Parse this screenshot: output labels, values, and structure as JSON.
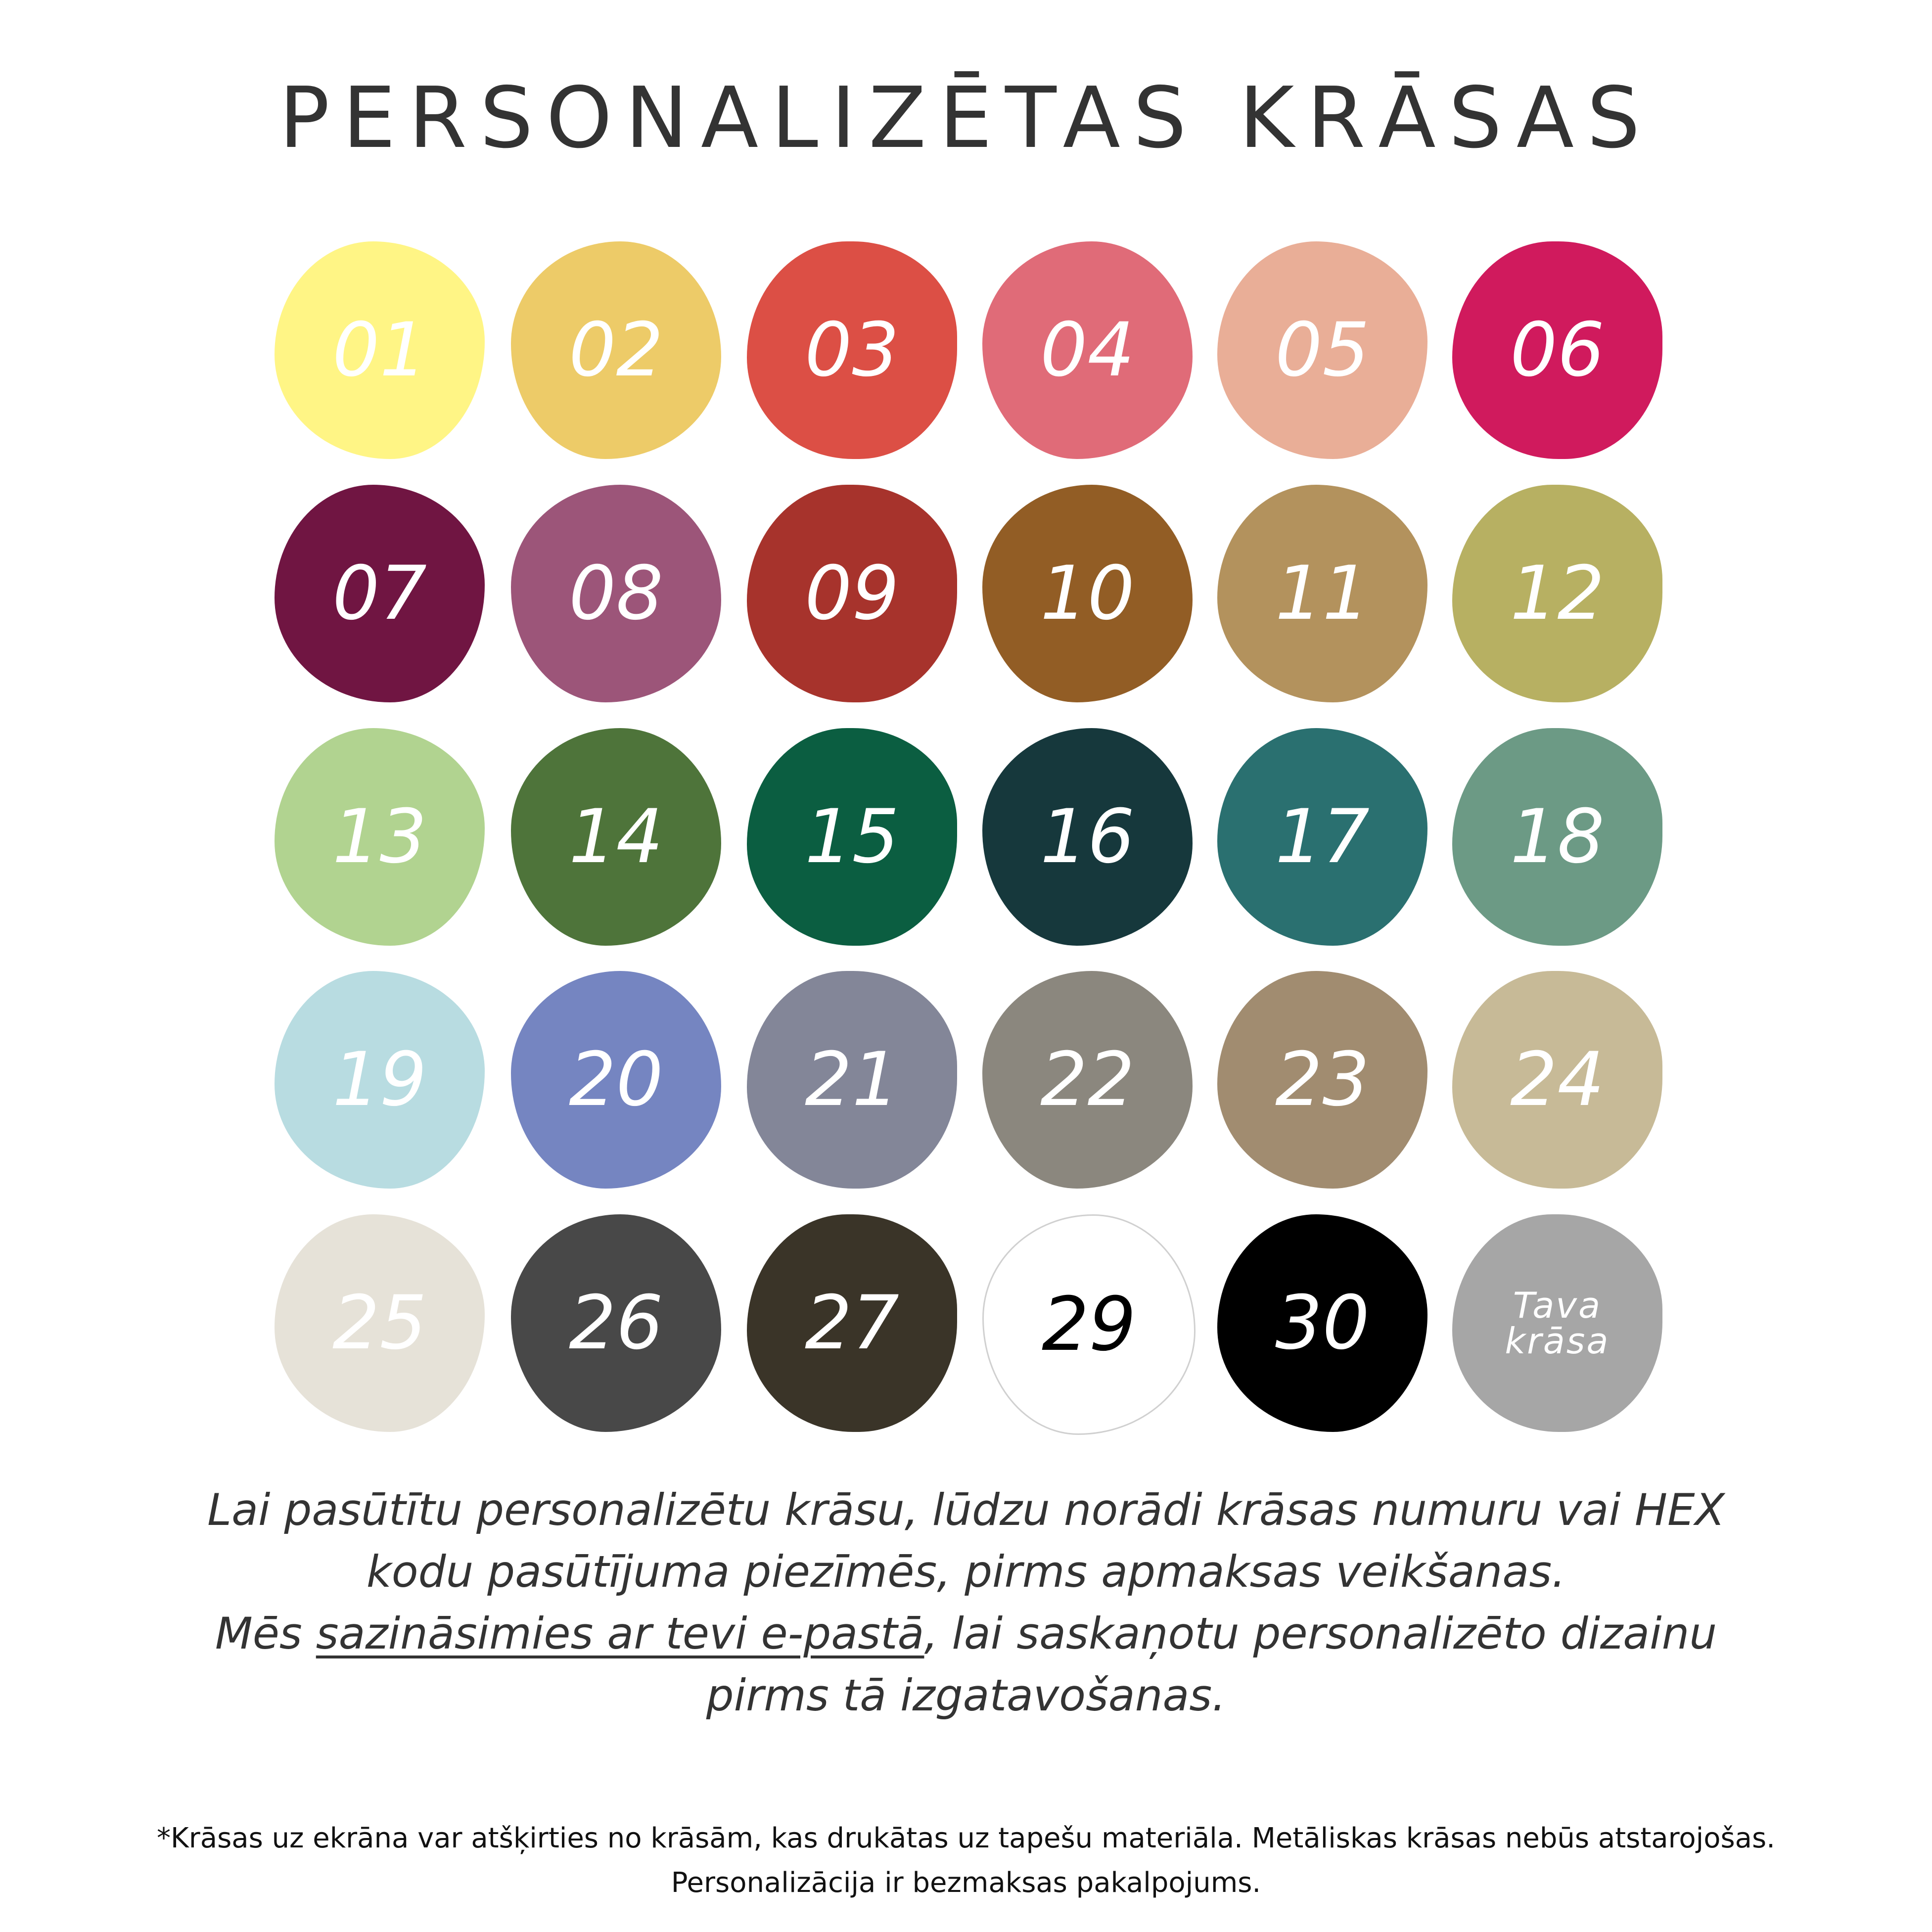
{
  "title": "PERSONALIZĒTAS KRĀSAS",
  "swatches": [
    {
      "label": "01",
      "color": "#fff585",
      "text": "#ffffff"
    },
    {
      "label": "02",
      "color": "#edcb68",
      "text": "#ffffff"
    },
    {
      "label": "03",
      "color": "#dc4f45",
      "text": "#ffffff"
    },
    {
      "label": "04",
      "color": "#e06b78",
      "text": "#ffffff"
    },
    {
      "label": "05",
      "color": "#e9ae97",
      "text": "#ffffff"
    },
    {
      "label": "06",
      "color": "#d01a5d",
      "text": "#ffffff"
    },
    {
      "label": "07",
      "color": "#701542",
      "text": "#ffffff"
    },
    {
      "label": "08",
      "color": "#9c5579",
      "text": "#ffffff"
    },
    {
      "label": "09",
      "color": "#a7332c",
      "text": "#ffffff"
    },
    {
      "label": "10",
      "color": "#925d25",
      "text": "#ffffff"
    },
    {
      "label": "11",
      "color": "#b3925d",
      "text": "#ffffff"
    },
    {
      "label": "12",
      "color": "#b7b062",
      "text": "#ffffff"
    },
    {
      "label": "13",
      "color": "#b1d390",
      "text": "#ffffff"
    },
    {
      "label": "14",
      "color": "#4e743a",
      "text": "#ffffff"
    },
    {
      "label": "15",
      "color": "#0b5e41",
      "text": "#ffffff"
    },
    {
      "label": "16",
      "color": "#16383c",
      "text": "#ffffff"
    },
    {
      "label": "17",
      "color": "#2a7070",
      "text": "#ffffff"
    },
    {
      "label": "18",
      "color": "#6c9a85",
      "text": "#ffffff"
    },
    {
      "label": "19",
      "color": "#b8dce1",
      "text": "#ffffff"
    },
    {
      "label": "20",
      "color": "#7585c1",
      "text": "#ffffff"
    },
    {
      "label": "21",
      "color": "#838698",
      "text": "#ffffff"
    },
    {
      "label": "22",
      "color": "#8b877e",
      "text": "#ffffff"
    },
    {
      "label": "23",
      "color": "#a18c70",
      "text": "#ffffff"
    },
    {
      "label": "24",
      "color": "#c7ba97",
      "text": "#ffffff"
    },
    {
      "label": "25",
      "color": "#e6e2d8",
      "text": "#ffffff"
    },
    {
      "label": "26",
      "color": "#484848",
      "text": "#ffffff"
    },
    {
      "label": "27",
      "color": "#3a3428",
      "text": "#ffffff"
    },
    {
      "label": "29",
      "color": "#ffffff",
      "text": "#000000"
    },
    {
      "label": "30",
      "color": "#000000",
      "text": "#ffffff"
    },
    {
      "label": "Tava krāsa",
      "color": "#a6a6a6",
      "text": "#ffffff"
    }
  ],
  "instructions": {
    "line1": "Lai pasūtītu personalizētu krāsu, lūdzu norādi krāsas numuru vai HEX",
    "line2": "kodu pasūtījuma piezīmēs, pirms apmaksas veikšanas.",
    "line3_start": "Mēs ",
    "line3_link": "sazināsimies ar tevi e-pastā",
    "line3_end": ", lai saskaņotu personalizēto dizainu",
    "line4": "pirms tā izgatavošanas."
  },
  "footnote": {
    "line1": "*Krāsas uz ekrāna var atšķirties no krāsām, kas drukātas uz tapešu materiāla. Metāliskas krāsas nebūs atstarojošas.",
    "line2": "Personalizācija ir bezmaksas pakalpojums."
  }
}
